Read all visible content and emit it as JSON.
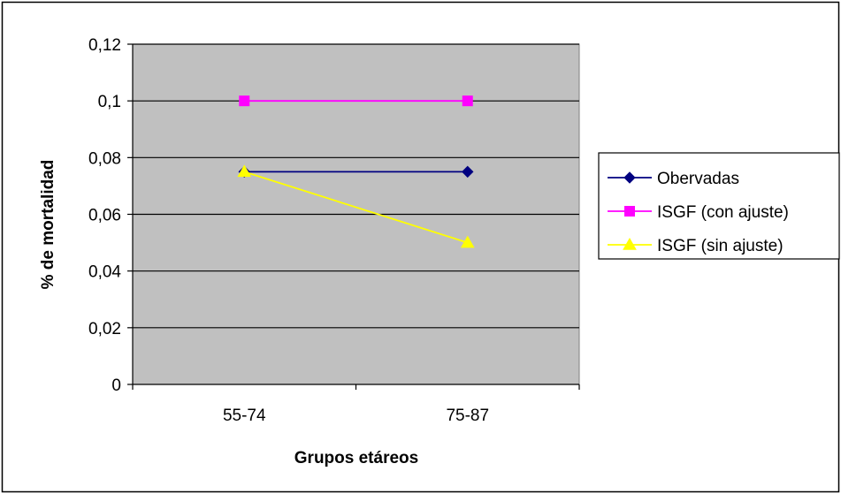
{
  "chart_data": {
    "type": "line",
    "categories": [
      "55-74",
      "75-87"
    ],
    "series": [
      {
        "name": "Obervadas",
        "values": [
          0.075,
          0.075
        ],
        "color": "#000080",
        "marker": "diamond"
      },
      {
        "name": "ISGF (con ajuste)",
        "values": [
          0.1,
          0.1
        ],
        "color": "#ff00ff",
        "marker": "square"
      },
      {
        "name": "ISGF (sin ajuste)",
        "values": [
          0.075,
          0.05
        ],
        "color": "#ffff00",
        "marker": "triangle"
      }
    ],
    "xlabel": "Grupos etáreos",
    "ylabel": "% de mortalidad",
    "ylim": [
      0,
      0.12
    ],
    "yticks": [
      0,
      0.02,
      0.04,
      0.06,
      0.08,
      0.1,
      0.12
    ],
    "ytick_labels": [
      "0",
      "0,02",
      "0,04",
      "0,06",
      "0,08",
      "0,1",
      "0,12"
    ],
    "grid": true,
    "plot_background": "#c0c0c0",
    "legend_position": "right"
  }
}
